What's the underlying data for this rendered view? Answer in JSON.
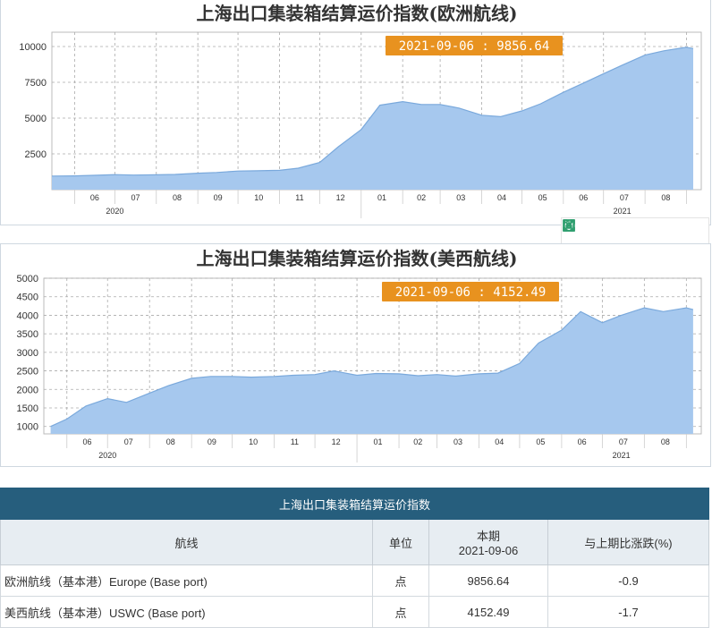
{
  "chart_data": [
    {
      "type": "area",
      "title": "上海出口集装箱结算运价指数(欧洲航线)",
      "tooltip": "2021-09-06 : 9856.64",
      "y_ticks": [
        2500,
        5000,
        7500,
        10000
      ],
      "ylim": [
        0,
        11000
      ],
      "x_month_labels": [
        "06",
        "07",
        "08",
        "09",
        "10",
        "11",
        "12",
        "01",
        "02",
        "03",
        "04",
        "05",
        "06",
        "07",
        "08"
      ],
      "x_year_labels": [
        "2020",
        "2021"
      ],
      "grid": true,
      "color": "#a6c8ee",
      "x": [
        "2020-05-15",
        "2020-06-01",
        "2020-06-15",
        "2020-07-01",
        "2020-07-15",
        "2020-08-01",
        "2020-08-15",
        "2020-09-01",
        "2020-09-15",
        "2020-10-01",
        "2020-10-15",
        "2020-11-01",
        "2020-11-15",
        "2020-12-01",
        "2020-12-15",
        "2021-01-01",
        "2021-01-15",
        "2021-02-01",
        "2021-02-15",
        "2021-03-01",
        "2021-03-15",
        "2021-04-01",
        "2021-04-15",
        "2021-05-01",
        "2021-05-15",
        "2021-06-01",
        "2021-06-15",
        "2021-07-01",
        "2021-07-15",
        "2021-08-01",
        "2021-08-15",
        "2021-09-01",
        "2021-09-06"
      ],
      "values": [
        950,
        960,
        1000,
        1050,
        1020,
        1040,
        1060,
        1150,
        1200,
        1300,
        1320,
        1350,
        1500,
        1900,
        3000,
        4200,
        5900,
        6150,
        5950,
        5950,
        5700,
        5200,
        5100,
        5500,
        6000,
        6800,
        7400,
        8100,
        8700,
        9400,
        9700,
        9950,
        9856.64
      ]
    },
    {
      "type": "area",
      "title": "上海出口集装箱结算运价指数(美西航线)",
      "tooltip": "2021-09-06 : 4152.49",
      "y_ticks": [
        1000,
        1500,
        2000,
        2500,
        3000,
        3500,
        4000,
        4500,
        5000
      ],
      "ylim": [
        800,
        5000
      ],
      "x_month_labels": [
        "06",
        "07",
        "08",
        "09",
        "10",
        "11",
        "12",
        "01",
        "02",
        "03",
        "04",
        "05",
        "06",
        "07",
        "08"
      ],
      "x_year_labels": [
        "2020",
        "2021"
      ],
      "grid": true,
      "color": "#a6c8ee",
      "x": [
        "2020-05-20",
        "2020-06-01",
        "2020-06-15",
        "2020-07-01",
        "2020-07-15",
        "2020-08-01",
        "2020-08-15",
        "2020-09-01",
        "2020-09-15",
        "2020-10-01",
        "2020-10-15",
        "2020-11-01",
        "2020-11-15",
        "2020-12-01",
        "2020-12-15",
        "2021-01-01",
        "2021-01-15",
        "2021-02-01",
        "2021-02-15",
        "2021-03-01",
        "2021-03-15",
        "2021-04-01",
        "2021-04-15",
        "2021-05-01",
        "2021-05-15",
        "2021-06-01",
        "2021-06-15",
        "2021-07-01",
        "2021-07-15",
        "2021-08-01",
        "2021-08-15",
        "2021-09-01",
        "2021-09-06"
      ],
      "values": [
        1000,
        1200,
        1550,
        1750,
        1650,
        1900,
        2100,
        2300,
        2350,
        2350,
        2330,
        2350,
        2380,
        2400,
        2500,
        2380,
        2430,
        2420,
        2370,
        2400,
        2360,
        2420,
        2440,
        2700,
        3250,
        3600,
        4100,
        3800,
        4000,
        4200,
        4100,
        4200,
        4152.49
      ]
    }
  ],
  "toolbar": {
    "icons": [
      "data-view-icon",
      "zoom-icon",
      "restore-icon",
      "save-image-icon",
      "settings-icon"
    ]
  },
  "table": {
    "title": "上海出口集装箱结算运价指数",
    "headers": {
      "route": "航线",
      "unit": "单位",
      "period_label": "本期",
      "period_date": "2021-09-06",
      "change": "与上期比涨跌(%)"
    },
    "rows": [
      {
        "route": "欧洲航线（基本港）Europe (Base port)",
        "unit": "点",
        "value": "9856.64",
        "change": "-0.9"
      },
      {
        "route": "美西航线（基本港）USWC (Base port)",
        "unit": "点",
        "value": "4152.49",
        "change": "-1.7"
      }
    ]
  }
}
